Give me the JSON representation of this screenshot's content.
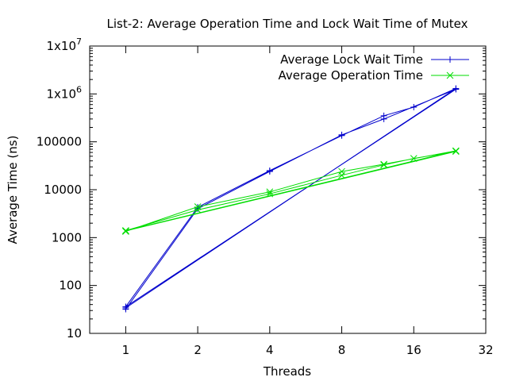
{
  "chart_data": {
    "type": "line",
    "title": "List-2: Average Operation Time and Lock Wait Time of Mutex",
    "xlabel": "Threads",
    "ylabel": "Average Time (ns)",
    "x_scale": "log2",
    "y_scale": "log10",
    "xlim": [
      0.707,
      32
    ],
    "ylim": [
      10,
      10000000
    ],
    "x_ticks": [
      {
        "value": 1,
        "label": "1"
      },
      {
        "value": 2,
        "label": "2"
      },
      {
        "value": 4,
        "label": "4"
      },
      {
        "value": 8,
        "label": "8"
      },
      {
        "value": 16,
        "label": "16"
      },
      {
        "value": 32,
        "label": "32"
      }
    ],
    "y_ticks": [
      {
        "value": 10,
        "label": "10",
        "exp": ""
      },
      {
        "value": 100,
        "label": "100",
        "exp": ""
      },
      {
        "value": 1000,
        "label": "1000",
        "exp": ""
      },
      {
        "value": 10000,
        "label": "10000",
        "exp": ""
      },
      {
        "value": 100000,
        "label": "100000",
        "exp": ""
      },
      {
        "value": 1000000,
        "label": "1x10",
        "exp": "6"
      },
      {
        "value": 10000000,
        "label": "1x10",
        "exp": "7"
      }
    ],
    "legend_position": "top-right",
    "grid": false,
    "series": [
      {
        "name": "Average Lock Wait Time",
        "color": "#0000cc",
        "marker": "plus",
        "points": [
          [
            1,
            32
          ],
          [
            2,
            4000
          ],
          [
            4,
            24000
          ],
          [
            8,
            140000
          ],
          [
            12,
            300000
          ],
          [
            24,
            1250000
          ],
          [
            1,
            36
          ],
          [
            2,
            4300
          ],
          [
            4,
            25000
          ],
          [
            8,
            135000
          ],
          [
            12,
            350000
          ],
          [
            16,
            530000
          ],
          [
            24,
            1300000
          ],
          [
            1,
            34
          ]
        ]
      },
      {
        "name": "Average Operation Time",
        "color": "#00dd00",
        "marker": "x",
        "points": [
          [
            1,
            1350
          ],
          [
            2,
            4400
          ],
          [
            4,
            9000
          ],
          [
            8,
            24000
          ],
          [
            12,
            34000
          ],
          [
            24,
            65000
          ],
          [
            1,
            1400
          ],
          [
            2,
            3800
          ],
          [
            4,
            8200
          ],
          [
            8,
            20000
          ],
          [
            12,
            33000
          ],
          [
            16,
            45000
          ],
          [
            24,
            63000
          ],
          [
            1,
            1380
          ]
        ]
      }
    ]
  }
}
